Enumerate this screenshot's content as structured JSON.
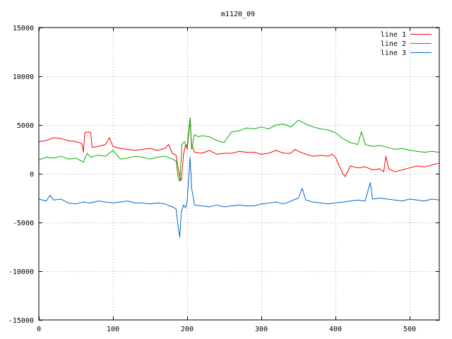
{
  "chart_data": {
    "type": "line",
    "title": "m1120_09",
    "xlabel": "",
    "ylabel": "",
    "xlim": [
      0,
      540
    ],
    "ylim": [
      -15000,
      15000
    ],
    "grid": true,
    "legend_position": "top-right",
    "x_ticks": [
      0,
      100,
      200,
      300,
      400,
      500
    ],
    "y_ticks": [
      -15000,
      -10000,
      -5000,
      0,
      5000,
      10000,
      15000
    ],
    "x_tick_labels": [
      "0",
      "100",
      "200",
      "300",
      "400",
      "500"
    ],
    "y_tick_labels": [
      "-15000",
      "-10000",
      "-5000",
      "0",
      "5000",
      "10000",
      "15000"
    ],
    "series": [
      {
        "name": "line 1",
        "color": "#ff0000",
        "points": [
          [
            0,
            3300
          ],
          [
            10,
            3400
          ],
          [
            20,
            3700
          ],
          [
            30,
            3600
          ],
          [
            40,
            3400
          ],
          [
            50,
            3300
          ],
          [
            58,
            3100
          ],
          [
            60,
            2200
          ],
          [
            62,
            4200
          ],
          [
            67,
            4300
          ],
          [
            70,
            4200
          ],
          [
            72,
            2700
          ],
          [
            80,
            2800
          ],
          [
            90,
            3000
          ],
          [
            95,
            3700
          ],
          [
            100,
            2800
          ],
          [
            110,
            2600
          ],
          [
            120,
            2500
          ],
          [
            130,
            2400
          ],
          [
            140,
            2500
          ],
          [
            150,
            2600
          ],
          [
            160,
            2400
          ],
          [
            170,
            2600
          ],
          [
            175,
            3000
          ],
          [
            180,
            2100
          ],
          [
            185,
            1900
          ],
          [
            188,
            500
          ],
          [
            190,
            -300
          ],
          [
            192,
            -700
          ],
          [
            195,
            2000
          ],
          [
            198,
            3000
          ],
          [
            200,
            2500
          ],
          [
            204,
            5500
          ],
          [
            206,
            3000
          ],
          [
            210,
            2200
          ],
          [
            220,
            2100
          ],
          [
            230,
            2400
          ],
          [
            240,
            2000
          ],
          [
            250,
            2100
          ],
          [
            260,
            2100
          ],
          [
            270,
            2300
          ],
          [
            280,
            2200
          ],
          [
            290,
            2200
          ],
          [
            300,
            2000
          ],
          [
            310,
            2100
          ],
          [
            320,
            2400
          ],
          [
            330,
            2100
          ],
          [
            340,
            2100
          ],
          [
            345,
            2500
          ],
          [
            350,
            2300
          ],
          [
            360,
            2000
          ],
          [
            370,
            1800
          ],
          [
            380,
            1900
          ],
          [
            390,
            1800
          ],
          [
            395,
            2000
          ],
          [
            400,
            1700
          ],
          [
            405,
            800
          ],
          [
            410,
            0
          ],
          [
            413,
            -300
          ],
          [
            420,
            800
          ],
          [
            430,
            600
          ],
          [
            440,
            700
          ],
          [
            450,
            400
          ],
          [
            460,
            500
          ],
          [
            465,
            200
          ],
          [
            468,
            1800
          ],
          [
            472,
            500
          ],
          [
            480,
            200
          ],
          [
            490,
            400
          ],
          [
            500,
            600
          ],
          [
            510,
            800
          ],
          [
            520,
            700
          ],
          [
            530,
            900
          ],
          [
            540,
            1100
          ]
        ]
      },
      {
        "name": "line 2",
        "color": "#00b000",
        "points": [
          [
            0,
            1400
          ],
          [
            10,
            1700
          ],
          [
            20,
            1600
          ],
          [
            30,
            1800
          ],
          [
            40,
            1500
          ],
          [
            50,
            1600
          ],
          [
            60,
            1200
          ],
          [
            65,
            2100
          ],
          [
            70,
            1700
          ],
          [
            80,
            1900
          ],
          [
            90,
            1800
          ],
          [
            100,
            2400
          ],
          [
            110,
            1500
          ],
          [
            120,
            1600
          ],
          [
            130,
            1800
          ],
          [
            140,
            1700
          ],
          [
            150,
            1500
          ],
          [
            160,
            1700
          ],
          [
            170,
            1800
          ],
          [
            180,
            1500
          ],
          [
            185,
            1300
          ],
          [
            188,
            -400
          ],
          [
            190,
            -800
          ],
          [
            193,
            3000
          ],
          [
            196,
            3300
          ],
          [
            200,
            2800
          ],
          [
            204,
            5800
          ],
          [
            206,
            2500
          ],
          [
            210,
            4000
          ],
          [
            215,
            3800
          ],
          [
            220,
            3900
          ],
          [
            230,
            3800
          ],
          [
            240,
            3400
          ],
          [
            250,
            3200
          ],
          [
            255,
            3800
          ],
          [
            260,
            4300
          ],
          [
            270,
            4400
          ],
          [
            280,
            4700
          ],
          [
            290,
            4600
          ],
          [
            300,
            4800
          ],
          [
            310,
            4600
          ],
          [
            320,
            5000
          ],
          [
            330,
            5100
          ],
          [
            340,
            4800
          ],
          [
            350,
            5500
          ],
          [
            360,
            5100
          ],
          [
            370,
            4800
          ],
          [
            380,
            4600
          ],
          [
            390,
            4500
          ],
          [
            400,
            4200
          ],
          [
            410,
            3600
          ],
          [
            420,
            3200
          ],
          [
            430,
            3000
          ],
          [
            435,
            4300
          ],
          [
            440,
            3000
          ],
          [
            450,
            2800
          ],
          [
            460,
            2900
          ],
          [
            470,
            2700
          ],
          [
            480,
            2500
          ],
          [
            490,
            2600
          ],
          [
            500,
            2400
          ],
          [
            510,
            2300
          ],
          [
            520,
            2200
          ],
          [
            530,
            2300
          ],
          [
            540,
            2200
          ]
        ]
      },
      {
        "name": "line 3",
        "color": "#0066cc",
        "points": [
          [
            0,
            -2600
          ],
          [
            10,
            -2800
          ],
          [
            15,
            -2200
          ],
          [
            20,
            -2700
          ],
          [
            30,
            -2600
          ],
          [
            40,
            -3000
          ],
          [
            50,
            -3100
          ],
          [
            60,
            -2900
          ],
          [
            70,
            -3000
          ],
          [
            80,
            -2800
          ],
          [
            90,
            -2900
          ],
          [
            100,
            -3000
          ],
          [
            110,
            -2900
          ],
          [
            120,
            -2800
          ],
          [
            130,
            -3000
          ],
          [
            140,
            -3000
          ],
          [
            150,
            -3100
          ],
          [
            160,
            -3000
          ],
          [
            170,
            -3100
          ],
          [
            180,
            -3400
          ],
          [
            185,
            -3600
          ],
          [
            188,
            -5500
          ],
          [
            190,
            -6500
          ],
          [
            192,
            -4000
          ],
          [
            195,
            -3200
          ],
          [
            198,
            -3500
          ],
          [
            200,
            -2800
          ],
          [
            204,
            1700
          ],
          [
            206,
            -1500
          ],
          [
            210,
            -3200
          ],
          [
            220,
            -3300
          ],
          [
            230,
            -3400
          ],
          [
            240,
            -3200
          ],
          [
            250,
            -3400
          ],
          [
            260,
            -3300
          ],
          [
            270,
            -3200
          ],
          [
            280,
            -3300
          ],
          [
            290,
            -3300
          ],
          [
            300,
            -3100
          ],
          [
            310,
            -3000
          ],
          [
            320,
            -2900
          ],
          [
            330,
            -3100
          ],
          [
            340,
            -2800
          ],
          [
            350,
            -2500
          ],
          [
            355,
            -1500
          ],
          [
            360,
            -2700
          ],
          [
            370,
            -2900
          ],
          [
            380,
            -3000
          ],
          [
            390,
            -3100
          ],
          [
            400,
            -3000
          ],
          [
            410,
            -2900
          ],
          [
            420,
            -2800
          ],
          [
            430,
            -2700
          ],
          [
            440,
            -2800
          ],
          [
            447,
            -900
          ],
          [
            450,
            -2600
          ],
          [
            460,
            -2500
          ],
          [
            470,
            -2600
          ],
          [
            480,
            -2700
          ],
          [
            490,
            -2800
          ],
          [
            500,
            -2600
          ],
          [
            510,
            -2700
          ],
          [
            520,
            -2800
          ],
          [
            530,
            -2600
          ],
          [
            540,
            -2700
          ]
        ]
      }
    ]
  }
}
